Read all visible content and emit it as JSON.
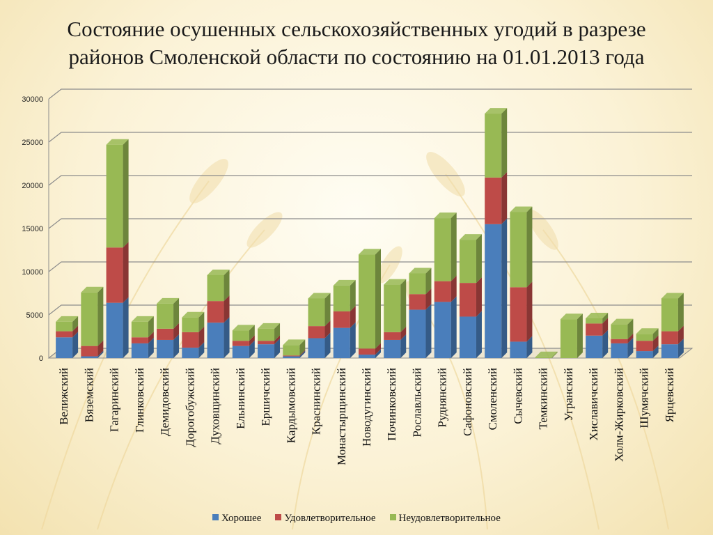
{
  "title": {
    "line1": "Состояние осушенных сельскохозяйственных угодий в разрезе",
    "line2": "районов Смоленской области по состоянию на 01.01.2013 года"
  },
  "chart_data": {
    "type": "bar",
    "stacked": true,
    "title": "Состояние осушенных сельскохозяйственных угодий в разрезе районов Смоленской области по состоянию на 01.01.2013 года",
    "xlabel": "",
    "ylabel": "",
    "ylim": [
      0,
      30000
    ],
    "yticks": [
      0,
      5000,
      10000,
      15000,
      20000,
      25000,
      30000
    ],
    "grid": true,
    "legend_position": "bottom",
    "categories": [
      "Велижский",
      "Вяземский",
      "Гагаринский",
      "Глинковский",
      "Демидовский",
      "Дорогобужский",
      "Духовщинский",
      "Ельнинский",
      "Ершичский",
      "Кардымовский",
      "Краснинский",
      "Монастырщинский",
      "Новодугинский",
      "Починковский",
      "Рославльский",
      "Руднянский",
      "Сафоновский",
      "Смоленский",
      "Сычевский",
      "Темкинский",
      "Угранский",
      "Хиславичский",
      "Холм-Жирковский",
      "Шумячский",
      "Ярцевский"
    ],
    "series": [
      {
        "name": "Хорошее",
        "color": "#4a7ebb",
        "values": [
          2400,
          200,
          6400,
          1700,
          2100,
          1200,
          4100,
          1400,
          1600,
          200,
          2300,
          3500,
          400,
          2100,
          5600,
          6500,
          4800,
          15500,
          1900,
          0,
          0,
          2600,
          1700,
          800,
          1600
        ]
      },
      {
        "name": "Удовлетворительное",
        "color": "#be4b48",
        "values": [
          700,
          1200,
          6400,
          700,
          1300,
          1800,
          2500,
          600,
          400,
          100,
          1400,
          1900,
          700,
          900,
          1800,
          2400,
          3900,
          5400,
          6300,
          0,
          0,
          1400,
          500,
          1200,
          1500
        ]
      },
      {
        "name": "Неудовлетворительное",
        "color": "#98b954",
        "values": [
          1100,
          6200,
          11900,
          1800,
          2900,
          1700,
          3000,
          1200,
          1400,
          1200,
          3200,
          3000,
          10900,
          5500,
          2400,
          7300,
          5000,
          7400,
          8700,
          100,
          4500,
          600,
          1700,
          800,
          3800
        ]
      }
    ]
  }
}
